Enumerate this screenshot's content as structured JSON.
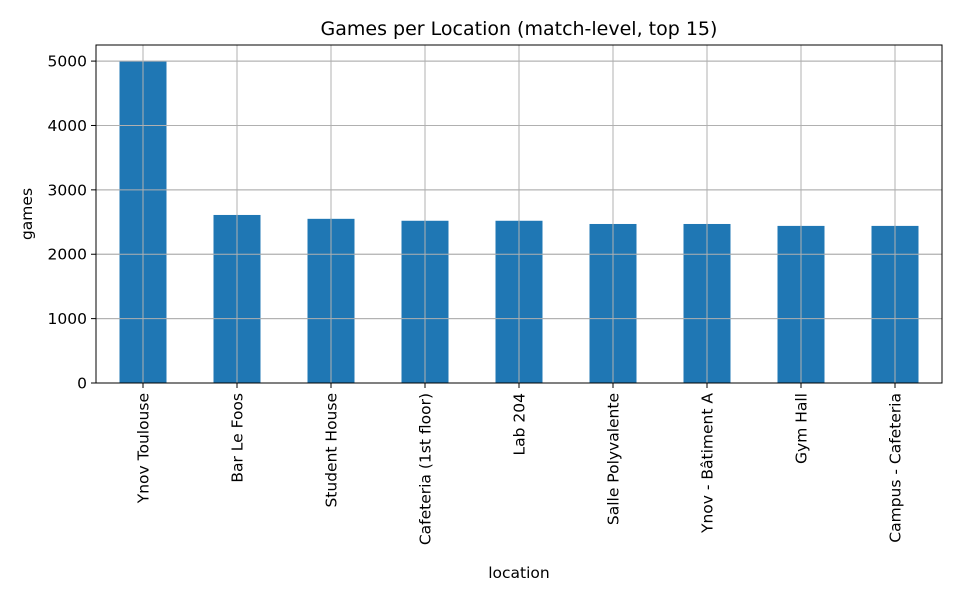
{
  "chart_data": {
    "type": "bar",
    "title": "Games per Location (match-level, top 15)",
    "xlabel": "location",
    "ylabel": "games",
    "categories": [
      "Ynov Toulouse",
      "Bar Le Foos",
      "Student House",
      "Cafeteria (1st floor)",
      "Lab 204",
      "Salle Polyvalente",
      "Ynov - Bâtiment A",
      "Gym Hall",
      "Campus - Cafeteria"
    ],
    "values": [
      4995,
      2610,
      2550,
      2520,
      2520,
      2470,
      2470,
      2440,
      2440
    ],
    "ylim": [
      0,
      5250
    ],
    "yticks": [
      0,
      1000,
      2000,
      3000,
      4000,
      5000
    ],
    "grid": true,
    "bar_color": "#1f77b4",
    "grid_color": "#b0b0b0"
  }
}
